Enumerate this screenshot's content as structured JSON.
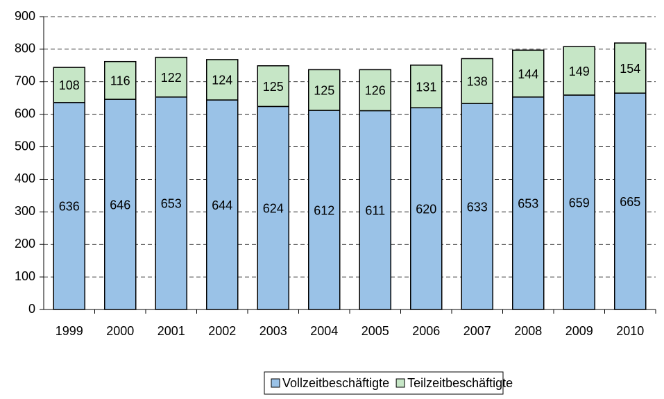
{
  "chart_data": {
    "type": "bar",
    "stacked": true,
    "categories": [
      "1999",
      "2000",
      "2001",
      "2002",
      "2003",
      "2004",
      "2005",
      "2006",
      "2007",
      "2008",
      "2009",
      "2010"
    ],
    "series": [
      {
        "name": "Vollzeitbeschäftigte",
        "color": "#9ac2e7",
        "values": [
          636,
          646,
          653,
          644,
          624,
          612,
          611,
          620,
          633,
          653,
          659,
          665
        ]
      },
      {
        "name": "Teilzeitbeschäftigte",
        "color": "#c6e6c6",
        "values": [
          108,
          116,
          122,
          124,
          125,
          125,
          126,
          131,
          138,
          144,
          149,
          154
        ]
      }
    ],
    "ylim": [
      0,
      900
    ],
    "yticks": [
      0,
      100,
      200,
      300,
      400,
      500,
      600,
      700,
      800,
      900
    ],
    "grid": true,
    "legend": "bottom"
  }
}
